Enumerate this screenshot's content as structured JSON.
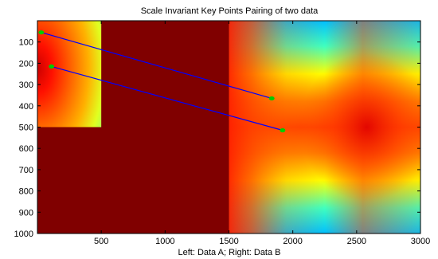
{
  "chart_data": {
    "type": "heatmap",
    "title": "Scale Invariant Key Points Pairing of two data",
    "xlabel": "Left: Data A; Right: Data B",
    "ylabel": "",
    "xlim": [
      0,
      3000
    ],
    "ylim": [
      1000,
      0
    ],
    "y_axis_reversed": true,
    "x_ticks": [
      500,
      1000,
      1500,
      2000,
      2500,
      3000
    ],
    "y_ticks": [
      100,
      200,
      300,
      400,
      500,
      600,
      700,
      800,
      900,
      1000
    ],
    "colormap": "jet",
    "background_color": "#800000",
    "regions": [
      {
        "name": "Data A",
        "x": [
          0,
          500
        ],
        "y": [
          0,
          500
        ],
        "pattern": "radial gradient, red near left, yellow-green toward lower right"
      },
      {
        "name": "Data B",
        "x": [
          1500,
          3000
        ],
        "y": [
          0,
          1000
        ],
        "pattern": "saddle field, blue at top/bottom right corners, red along horizontal center"
      }
    ],
    "keypoints": [
      {
        "x": 30,
        "y": 55
      },
      {
        "x": 110,
        "y": 215
      },
      {
        "x": 1835,
        "y": 365
      },
      {
        "x": 1920,
        "y": 515
      }
    ],
    "pairs": [
      {
        "from": [
          30,
          55
        ],
        "to": [
          1835,
          365
        ]
      },
      {
        "from": [
          110,
          215
        ],
        "to": [
          1920,
          515
        ]
      }
    ],
    "line_color": "#0000ff",
    "point_color": "#00cc00"
  }
}
